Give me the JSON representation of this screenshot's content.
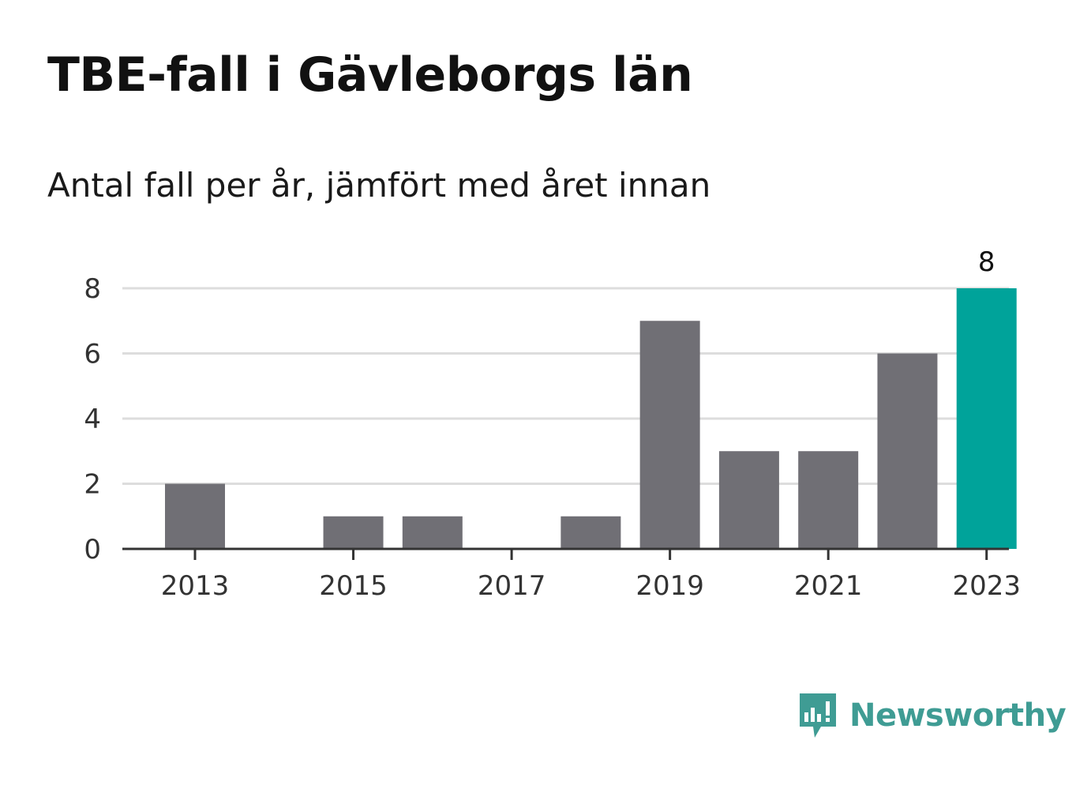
{
  "header": {
    "title": "TBE-fall i Gävleborgs län",
    "subtitle": "Antal fall per år, jämfört med året innan"
  },
  "brand": {
    "name": "Newsworthy",
    "color": "#3f9c94"
  },
  "chart_data": {
    "type": "bar",
    "title": "TBE-fall i Gävleborgs län",
    "subtitle": "Antal fall per år, jämfört med året innan",
    "x": [
      2013,
      2014,
      2015,
      2016,
      2017,
      2018,
      2019,
      2020,
      2021,
      2022,
      2023
    ],
    "values": [
      2,
      0,
      1,
      1,
      0,
      1,
      7,
      3,
      3,
      6,
      8
    ],
    "x_tick_labels": [
      "2013",
      "2015",
      "2017",
      "2019",
      "2021",
      "2023"
    ],
    "y_tick_labels": [
      "0",
      "2",
      "4",
      "6",
      "8"
    ],
    "ylim": [
      0,
      8
    ],
    "grid": true,
    "highlight": {
      "x": 2023,
      "value": 8,
      "label": "8"
    },
    "colors": {
      "bar": "#706f75",
      "highlight": "#00a39a",
      "grid": "#dddddd",
      "axis": "#333333"
    }
  }
}
